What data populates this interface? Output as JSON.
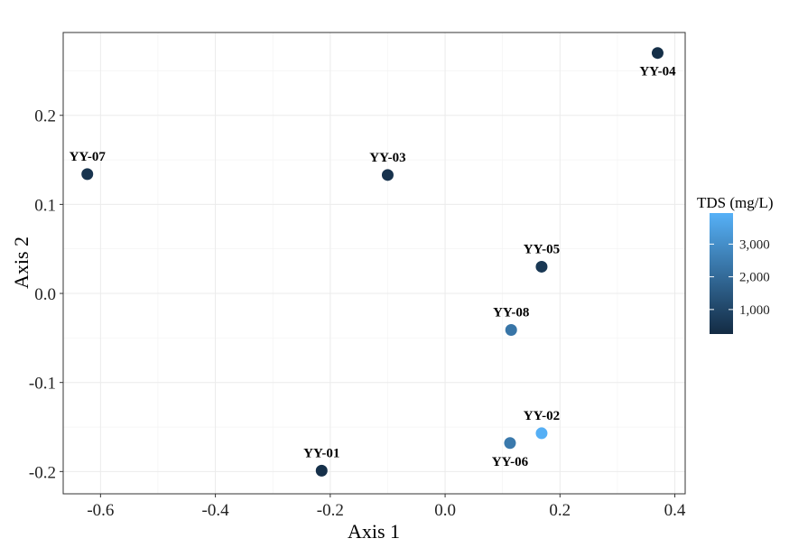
{
  "chart_data": {
    "type": "scatter",
    "title": "",
    "xlabel": "Axis 1",
    "ylabel": "Axis 2",
    "xlim": [
      -0.665,
      0.418
    ],
    "ylim": [
      -0.225,
      0.293
    ],
    "xticks": [
      -0.6,
      -0.4,
      -0.2,
      0.0,
      0.2,
      0.4
    ],
    "xtick_labels": [
      "-0.6",
      "-0.4",
      "-0.2",
      "0.0",
      "0.2",
      "0.4"
    ],
    "yticks": [
      -0.2,
      -0.1,
      0.0,
      0.1,
      0.2
    ],
    "ytick_labels": [
      "-0.2",
      "-0.1",
      "0.0",
      "0.1",
      "0.2"
    ],
    "grid": true,
    "legend": {
      "title": "TDS (mg/L)",
      "placement": "right",
      "min": 250,
      "max": 3950,
      "ticks": [
        1000,
        2000,
        3000
      ],
      "tick_labels": [
        "1,000",
        "2,000",
        "3,000"
      ],
      "color_low": "#132B43",
      "color_high": "#56B1F7"
    },
    "points": [
      {
        "label": "YY-01",
        "x": -0.215,
        "y": -0.199,
        "tds": 400,
        "label_pos": "above"
      },
      {
        "label": "YY-02",
        "x": 0.168,
        "y": -0.157,
        "tds": 3900,
        "label_pos": "above"
      },
      {
        "label": "YY-03",
        "x": -0.1,
        "y": 0.133,
        "tds": 450,
        "label_pos": "above"
      },
      {
        "label": "YY-04",
        "x": 0.37,
        "y": 0.27,
        "tds": 350,
        "label_pos": "below"
      },
      {
        "label": "YY-05",
        "x": 0.168,
        "y": 0.03,
        "tds": 600,
        "label_pos": "above"
      },
      {
        "label": "YY-06",
        "x": 0.113,
        "y": -0.168,
        "tds": 2400,
        "label_pos": "below"
      },
      {
        "label": "YY-07",
        "x": -0.623,
        "y": 0.134,
        "tds": 500,
        "label_pos": "above"
      },
      {
        "label": "YY-08",
        "x": 0.115,
        "y": -0.041,
        "tds": 2300,
        "label_pos": "above"
      }
    ]
  }
}
